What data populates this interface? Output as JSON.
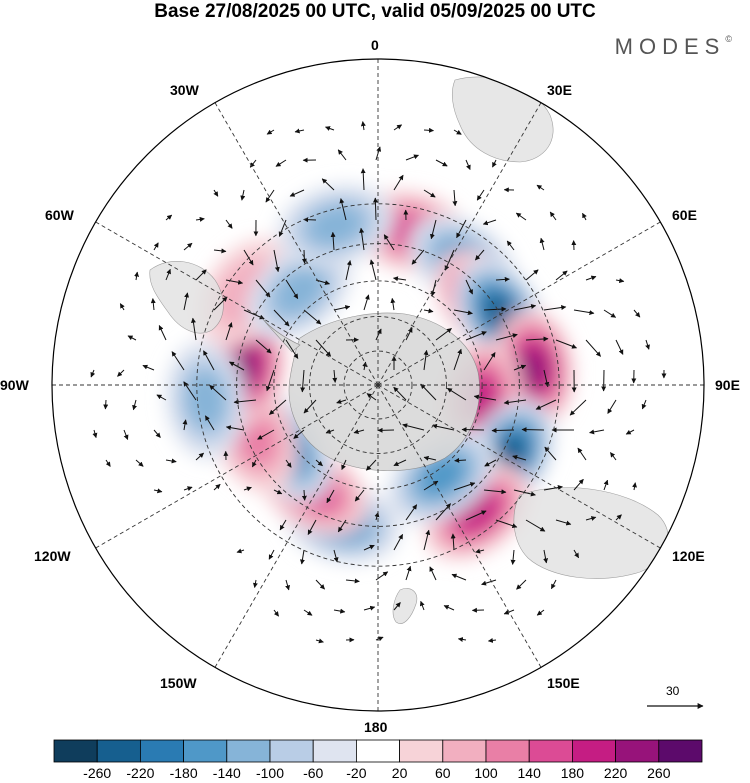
{
  "title": "Base 27/08/2025 00 UTC, valid 05/09/2025 00 UTC",
  "brand": "MODES",
  "brand_mark": "©",
  "longitude_labels": {
    "lon_0": "0",
    "lon_30E": "30E",
    "lon_60E": "60E",
    "lon_90E": "90E",
    "lon_120E": "120E",
    "lon_150E": "150E",
    "lon_180": "180",
    "lon_150W": "150W",
    "lon_120W": "120W",
    "lon_90W": "90W",
    "lon_60W": "60W",
    "lon_30W": "30W"
  },
  "reference_vector": {
    "label": "30"
  },
  "colorbar": {
    "ticks": [
      "-260",
      "-220",
      "-180",
      "-140",
      "-100",
      "-60",
      "-20",
      "20",
      "60",
      "100",
      "140",
      "180",
      "220",
      "260"
    ],
    "colors": [
      "#0f3d5c",
      "#165f8f",
      "#2a7bb3",
      "#4f98c8",
      "#86b4d8",
      "#b9cde6",
      "#dfe4f0",
      "#ffffff",
      "#f7d3d8",
      "#f2afc0",
      "#e97fa6",
      "#dc4b95",
      "#c51d83",
      "#97137a",
      "#5c0a6b"
    ]
  },
  "colors": {
    "land": "#d9d9d9",
    "grid": "#333333"
  },
  "chart_data": {
    "type": "heatmap",
    "title": "Base 27/08/2025 00 UTC, valid 05/09/2025 00 UTC",
    "projection": "south polar stereographic",
    "field": "filled anomaly with wind vectors",
    "levels": [
      -260,
      -220,
      -180,
      -140,
      -100,
      -60,
      -20,
      20,
      60,
      100,
      140,
      180,
      220,
      260
    ],
    "reference_vector": 30,
    "meridians_deg": [
      0,
      30,
      60,
      90,
      120,
      150,
      180,
      -150,
      -120,
      -90,
      -60,
      -30
    ],
    "anomaly_centers": [
      {
        "lon": 12,
        "lat": -46,
        "value": 170
      },
      {
        "lon": 35,
        "lat": -48,
        "value": -150
      },
      {
        "lon": 52,
        "lat": -52,
        "value": 190
      },
      {
        "lon": 60,
        "lat": -50,
        "value": -220
      },
      {
        "lon": 84,
        "lat": -46,
        "value": 240
      },
      {
        "lon": 98,
        "lat": -60,
        "value": 190
      },
      {
        "lon": 118,
        "lat": -48,
        "value": -230
      },
      {
        "lon": 142,
        "lat": -45,
        "value": 200
      },
      {
        "lon": 145,
        "lat": -58,
        "value": -150
      },
      {
        "lon": -165,
        "lat": -50,
        "value": -150
      },
      {
        "lon": -148,
        "lat": -55,
        "value": 170
      },
      {
        "lon": -124,
        "lat": -58,
        "value": -190
      },
      {
        "lon": -112,
        "lat": -52,
        "value": 110
      },
      {
        "lon": -82,
        "lat": -52,
        "value": 230
      },
      {
        "lon": -95,
        "lat": -42,
        "value": -130
      },
      {
        "lon": -55,
        "lat": -45,
        "value": 70
      },
      {
        "lon": -40,
        "lat": -55,
        "value": -110
      },
      {
        "lon": -15,
        "lat": -44,
        "value": -110
      }
    ]
  }
}
